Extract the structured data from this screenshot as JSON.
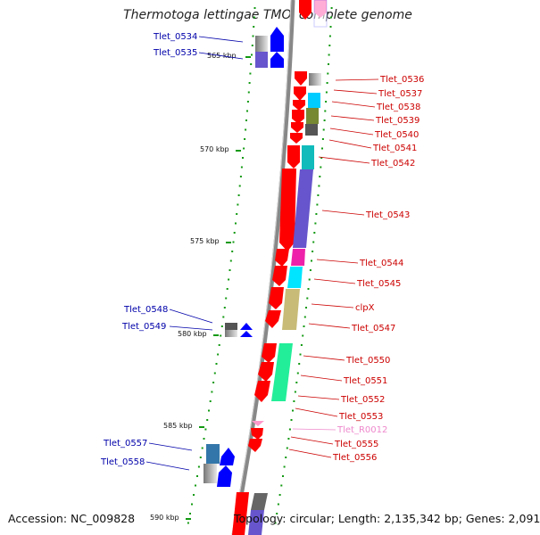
{
  "title": "Thermotoga lettingae TMO, complete genome",
  "footer": {
    "accession": "Accession: NC_009828",
    "topology": "Topology: circular; Length: 2,135,342 bp; Genes: 2,091"
  },
  "colors": {
    "red": "#ff0000",
    "blue": "#0000ff",
    "pink": "#ff99cc",
    "backbone": "#888888",
    "tick": "#119911"
  },
  "scale_ticks": [
    "565 kbp",
    "570 kbp",
    "575 kbp",
    "580 kbp",
    "585 kbp",
    "590 kbp"
  ],
  "right_labels": [
    {
      "text": "Tlet_0536",
      "color": "#cc0000"
    },
    {
      "text": "Tlet_0537",
      "color": "#cc0000"
    },
    {
      "text": "Tlet_0538",
      "color": "#cc0000"
    },
    {
      "text": "Tlet_0539",
      "color": "#cc0000"
    },
    {
      "text": "Tlet_0540",
      "color": "#cc0000"
    },
    {
      "text": "Tlet_0541",
      "color": "#cc0000"
    },
    {
      "text": "Tlet_0542",
      "color": "#cc0000"
    },
    {
      "text": "Tlet_0543",
      "color": "#cc0000"
    },
    {
      "text": "Tlet_0544",
      "color": "#cc0000"
    },
    {
      "text": "Tlet_0545",
      "color": "#cc0000"
    },
    {
      "text": "clpX",
      "color": "#cc0000"
    },
    {
      "text": "Tlet_0547",
      "color": "#cc0000"
    },
    {
      "text": "Tlet_0550",
      "color": "#cc0000"
    },
    {
      "text": "Tlet_0551",
      "color": "#cc0000"
    },
    {
      "text": "Tlet_0552",
      "color": "#cc0000"
    },
    {
      "text": "Tlet_0553",
      "color": "#cc0000"
    },
    {
      "text": "Tlet_R0012",
      "color": "#ee88cc"
    },
    {
      "text": "Tlet_0555",
      "color": "#cc0000"
    },
    {
      "text": "Tlet_0556",
      "color": "#cc0000"
    }
  ],
  "left_labels": [
    {
      "text": "Tlet_0534",
      "color": "#0000aa"
    },
    {
      "text": "Tlet_0535",
      "color": "#0000aa"
    },
    {
      "text": "Tlet_0548",
      "color": "#0000aa"
    },
    {
      "text": "Tlet_0549",
      "color": "#0000aa"
    },
    {
      "text": "Tlet_0557",
      "color": "#0000aa"
    },
    {
      "text": "Tlet_0558",
      "color": "#0000aa"
    }
  ]
}
